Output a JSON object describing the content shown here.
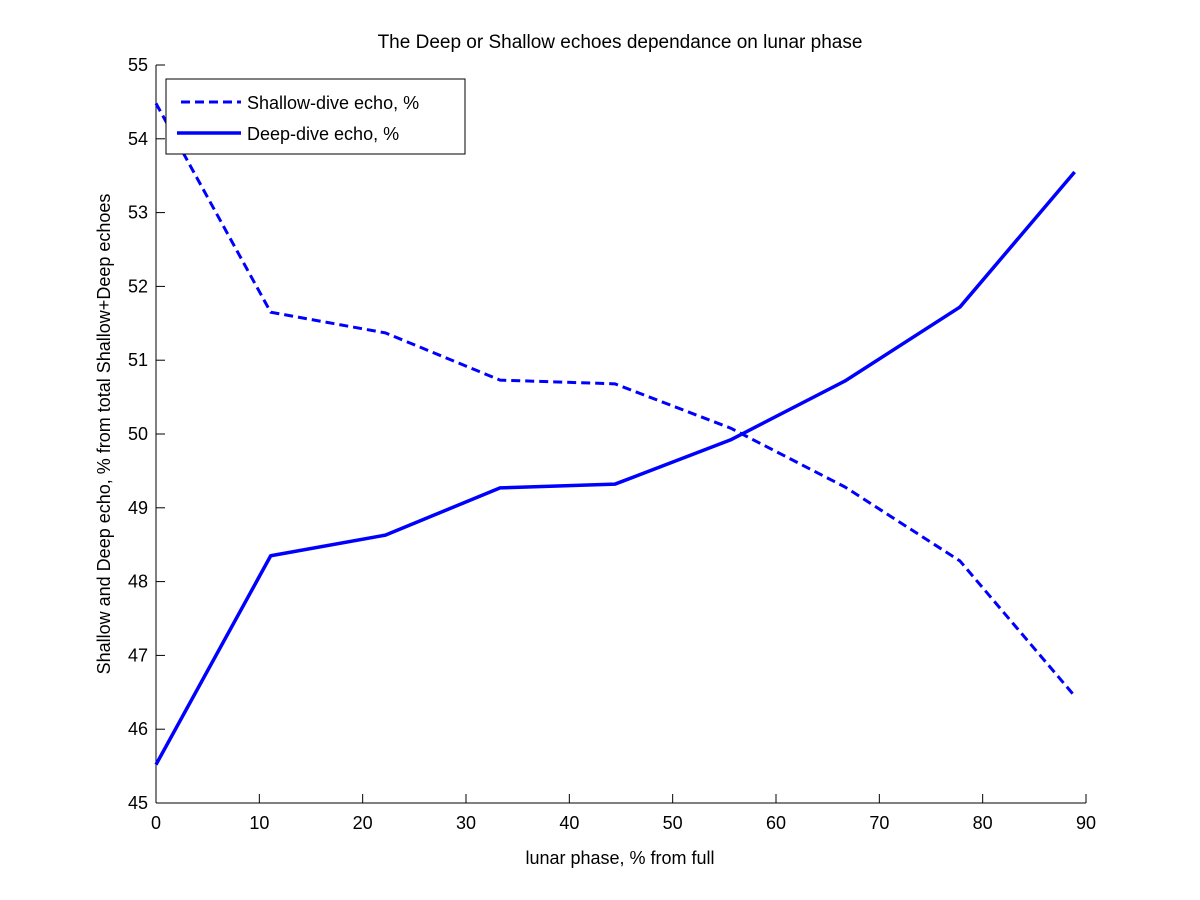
{
  "chart_data": {
    "type": "line",
    "title": "The Deep or Shallow echoes dependance on lunar phase",
    "xlabel": "lunar phase, % from full",
    "ylabel": "Shallow and Deep echo, % from total Shallow+Deep echoes",
    "xlim": [
      0,
      90
    ],
    "ylim": [
      45,
      55
    ],
    "xticks": [
      "0",
      "10",
      "20",
      "30",
      "40",
      "50",
      "60",
      "70",
      "80",
      "90"
    ],
    "yticks": [
      "45",
      "46",
      "47",
      "48",
      "49",
      "50",
      "51",
      "52",
      "53",
      "54",
      "55"
    ],
    "grid": false,
    "legend_position": "top-left",
    "x": [
      0,
      11.1,
      22.2,
      33.3,
      44.4,
      55.6,
      66.7,
      77.8,
      88.9
    ],
    "series": [
      {
        "name": "Shallow-dive echo, %",
        "style": "dashed",
        "color": "#0000ff",
        "values": [
          54.48,
          51.65,
          51.37,
          50.73,
          50.68,
          50.08,
          49.28,
          48.28,
          46.45
        ]
      },
      {
        "name": "Deep-dive echo, %",
        "style": "solid",
        "color": "#0000ff",
        "values": [
          45.52,
          48.35,
          48.63,
          49.27,
          49.32,
          49.92,
          50.72,
          51.72,
          53.55
        ]
      }
    ]
  }
}
